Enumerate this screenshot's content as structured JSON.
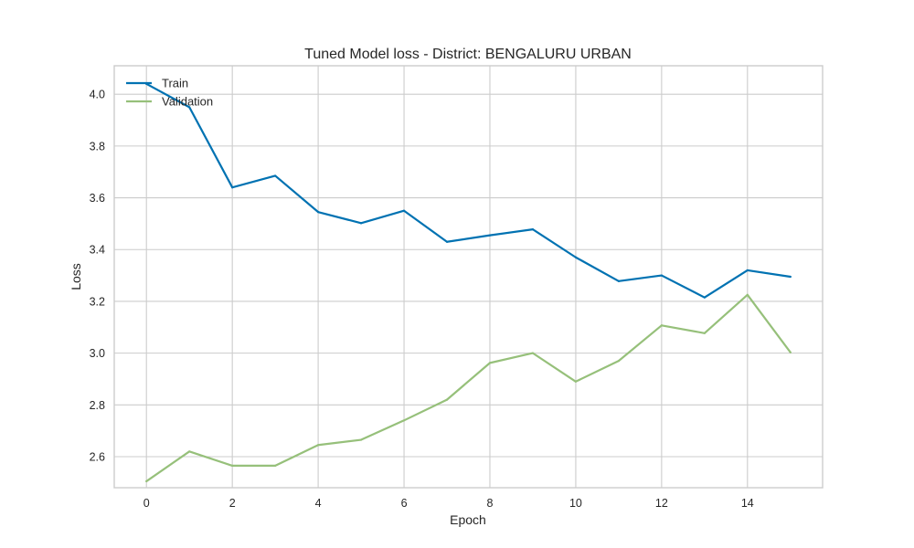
{
  "chart_data": {
    "type": "line",
    "title": "Tuned Model loss - District: BENGALURU URBAN",
    "xlabel": "Epoch",
    "ylabel": "Loss",
    "x": [
      0,
      1,
      2,
      3,
      4,
      5,
      6,
      7,
      8,
      9,
      10,
      11,
      12,
      13,
      14,
      15
    ],
    "xlim": [
      -0.75,
      15.75
    ],
    "ylim": [
      2.48,
      4.11
    ],
    "xticks": [
      0,
      2,
      4,
      6,
      8,
      10,
      12,
      14
    ],
    "yticks": [
      2.6,
      2.8,
      3.0,
      3.2,
      3.4,
      3.6,
      3.8,
      4.0
    ],
    "xtick_labels": [
      "0",
      "2",
      "4",
      "6",
      "8",
      "10",
      "12",
      "14"
    ],
    "ytick_labels": [
      "2.6",
      "2.8",
      "3.0",
      "3.2",
      "3.4",
      "3.6",
      "3.8",
      "4.0"
    ],
    "grid": true,
    "legend_position": "upper-left",
    "series": [
      {
        "name": "Train",
        "color": "#0072b2",
        "values": [
          4.04,
          3.95,
          3.64,
          3.685,
          3.545,
          3.502,
          3.55,
          3.43,
          3.455,
          3.478,
          3.37,
          3.278,
          3.3,
          3.215,
          3.32,
          3.295
        ]
      },
      {
        "name": "Validation",
        "color": "#96c07a",
        "values": [
          2.505,
          2.62,
          2.565,
          2.565,
          2.645,
          2.665,
          2.74,
          2.82,
          2.962,
          3.0,
          2.89,
          2.97,
          3.107,
          3.077,
          3.225,
          3.003
        ]
      }
    ]
  }
}
